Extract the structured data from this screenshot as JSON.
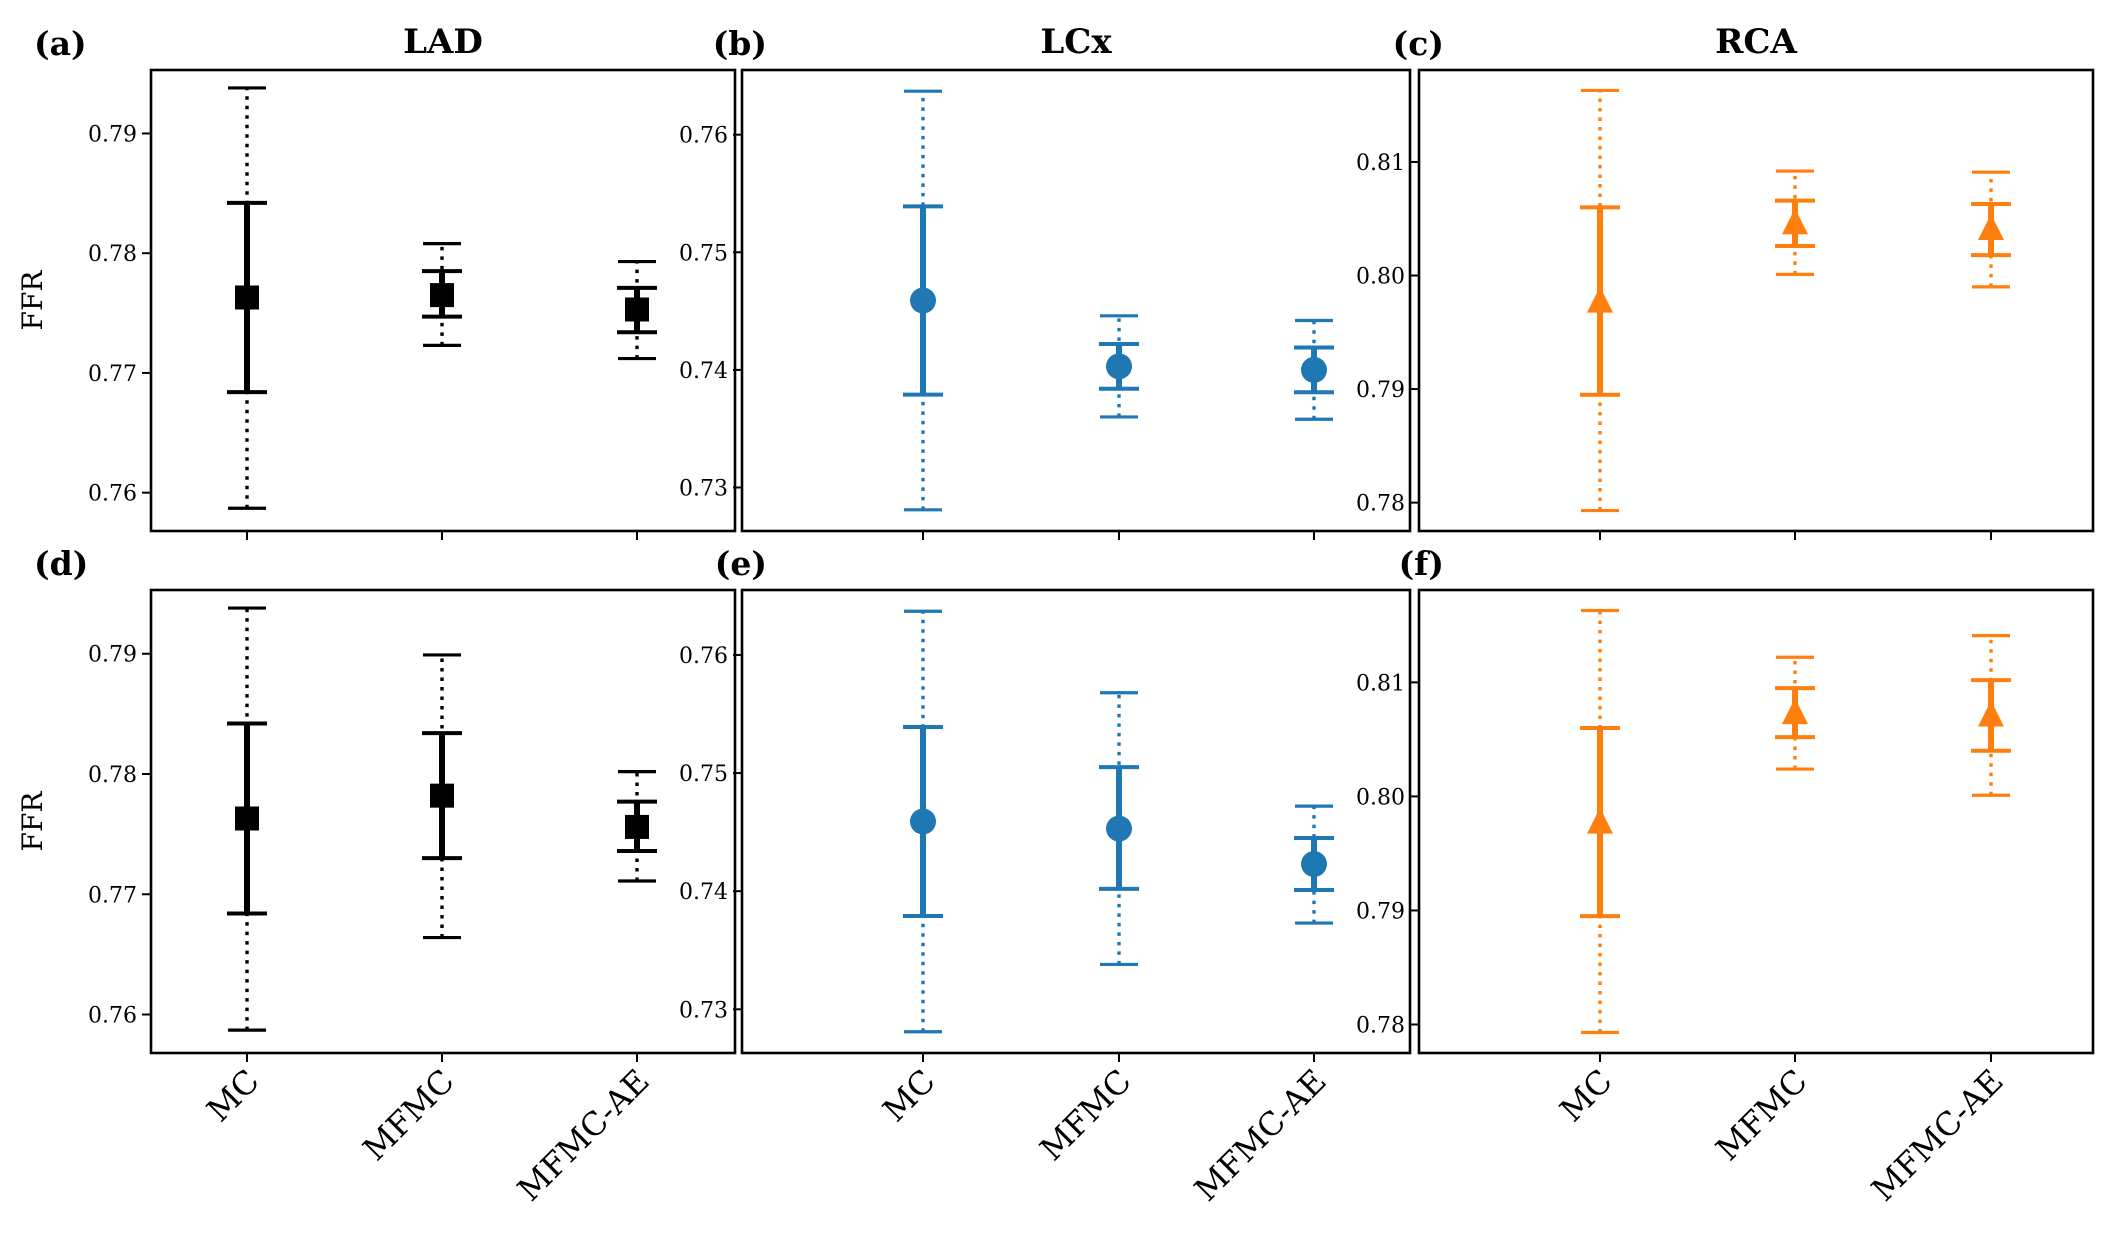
{
  "chart_data": {
    "type": "errorbar",
    "categories": [
      "MC",
      "MFMC",
      "MFMC-AE"
    ],
    "ylabel": "FFR",
    "column_titles": [
      "LAD",
      "LCx",
      "RCA"
    ],
    "panels": [
      {
        "label": "(a)",
        "vessel": "LAD",
        "color": "#000000",
        "marker": "square",
        "ylim": [
          0.7568,
          0.7953
        ],
        "yticks": [
          "0.76",
          "0.77",
          "0.78",
          "0.79"
        ],
        "ytick_values": [
          0.76,
          0.77,
          0.78,
          0.79
        ],
        "points": [
          {
            "category": "MC",
            "mean": 0.7763,
            "inner": [
              0.7684,
              0.7842
            ],
            "outer": [
              0.7587,
              0.7938
            ]
          },
          {
            "category": "MFMC",
            "mean": 0.7765,
            "inner": [
              0.7747,
              0.7785
            ],
            "outer": [
              0.7723,
              0.7808
            ]
          },
          {
            "category": "MFMC-AE",
            "mean": 0.7753,
            "inner": [
              0.7734,
              0.7771
            ],
            "outer": [
              0.7712,
              0.7793
            ]
          }
        ]
      },
      {
        "label": "(b)",
        "vessel": "LCx",
        "color": "#1f77b4",
        "marker": "circle",
        "ylim": [
          0.7263,
          0.7655
        ],
        "yticks": [
          "0.73",
          "0.74",
          "0.75",
          "0.76"
        ],
        "ytick_values": [
          0.73,
          0.74,
          0.75,
          0.76
        ],
        "points": [
          {
            "category": "MC",
            "mean": 0.7459,
            "inner": [
              0.7379,
              0.7539
            ],
            "outer": [
              0.7281,
              0.7637
            ]
          },
          {
            "category": "MFMC",
            "mean": 0.7403,
            "inner": [
              0.7384,
              0.7422
            ],
            "outer": [
              0.736,
              0.7446
            ]
          },
          {
            "category": "MFMC-AE",
            "mean": 0.74,
            "inner": [
              0.7381,
              0.7419
            ],
            "outer": [
              0.7358,
              0.7442
            ]
          }
        ]
      },
      {
        "label": "(c)",
        "vessel": "RCA",
        "color": "#ff7f0e",
        "marker": "triangle",
        "ylim": [
          0.7775,
          0.8181
        ],
        "yticks": [
          "0.78",
          "0.79",
          "0.80",
          "0.81"
        ],
        "ytick_values": [
          0.78,
          0.79,
          0.8,
          0.81
        ],
        "points": [
          {
            "category": "MC",
            "mean": 0.7977,
            "inner": [
              0.7895,
              0.806
            ],
            "outer": [
              0.7793,
              0.8163
            ]
          },
          {
            "category": "MFMC",
            "mean": 0.8046,
            "inner": [
              0.8026,
              0.8066
            ],
            "outer": [
              0.8001,
              0.8092
            ]
          },
          {
            "category": "MFMC-AE",
            "mean": 0.8041,
            "inner": [
              0.8018,
              0.8063
            ],
            "outer": [
              0.799,
              0.8091
            ]
          }
        ]
      },
      {
        "label": "(d)",
        "vessel": "LAD",
        "color": "#000000",
        "marker": "square",
        "ylim": [
          0.7568,
          0.7953
        ],
        "yticks": [
          "0.76",
          "0.77",
          "0.78",
          "0.79"
        ],
        "ytick_values": [
          0.76,
          0.77,
          0.78,
          0.79
        ],
        "points": [
          {
            "category": "MC",
            "mean": 0.7763,
            "inner": [
              0.7684,
              0.7842
            ],
            "outer": [
              0.7587,
              0.7938
            ]
          },
          {
            "category": "MFMC",
            "mean": 0.7782,
            "inner": [
              0.773,
              0.7834
            ],
            "outer": [
              0.7664,
              0.7899
            ]
          },
          {
            "category": "MFMC-AE",
            "mean": 0.7756,
            "inner": [
              0.7736,
              0.7777
            ],
            "outer": [
              0.7711,
              0.7802
            ]
          }
        ]
      },
      {
        "label": "(e)",
        "vessel": "LCx",
        "color": "#1f77b4",
        "marker": "circle",
        "ylim": [
          0.7263,
          0.7655
        ],
        "yticks": [
          "0.73",
          "0.74",
          "0.75",
          "0.76"
        ],
        "ytick_values": [
          0.73,
          0.74,
          0.75,
          0.76
        ],
        "points": [
          {
            "category": "MC",
            "mean": 0.7459,
            "inner": [
              0.7379,
              0.7539
            ],
            "outer": [
              0.7281,
              0.7637
            ]
          },
          {
            "category": "MFMC",
            "mean": 0.7453,
            "inner": [
              0.7402,
              0.7505
            ],
            "outer": [
              0.7338,
              0.7568
            ]
          },
          {
            "category": "MFMC-AE",
            "mean": 0.7423,
            "inner": [
              0.7401,
              0.7445
            ],
            "outer": [
              0.7373,
              0.7472
            ]
          }
        ]
      },
      {
        "label": "(f)",
        "vessel": "RCA",
        "color": "#ff7f0e",
        "marker": "triangle",
        "ylim": [
          0.7775,
          0.8181
        ],
        "yticks": [
          "0.78",
          "0.79",
          "0.80",
          "0.81"
        ],
        "ytick_values": [
          0.78,
          0.79,
          0.8,
          0.81
        ],
        "points": [
          {
            "category": "MC",
            "mean": 0.7977,
            "inner": [
              0.7895,
              0.806
            ],
            "outer": [
              0.7793,
              0.8163
            ]
          },
          {
            "category": "MFMC",
            "mean": 0.8073,
            "inner": [
              0.8052,
              0.8095
            ],
            "outer": [
              0.8024,
              0.8122
            ]
          },
          {
            "category": "MFMC-AE",
            "mean": 0.8071,
            "inner": [
              0.804,
              0.8102
            ],
            "outer": [
              0.8001,
              0.8141
            ]
          }
        ]
      }
    ]
  }
}
